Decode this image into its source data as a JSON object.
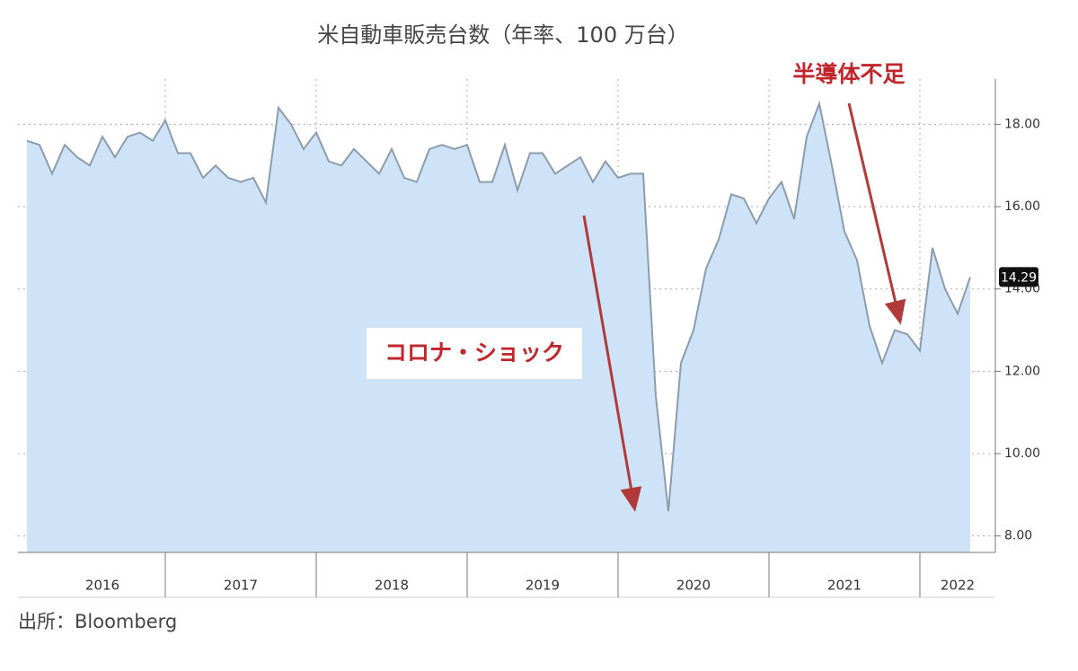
{
  "chart_data": {
    "type": "area",
    "title": "米自動車販売台数（年率、100 万台）",
    "source": "出所：Bloomberg",
    "annotations": [
      "コロナ・ショック",
      "半導体不足"
    ],
    "categories": [
      null,
      null,
      null,
      null,
      null,
      null,
      "2016",
      null,
      null,
      null,
      null,
      null,
      null,
      null,
      null,
      null,
      null,
      "2017",
      null,
      null,
      null,
      null,
      null,
      null,
      null,
      null,
      null,
      null,
      null,
      "2018",
      null,
      null,
      null,
      null,
      null,
      null,
      null,
      null,
      null,
      null,
      null,
      "2019",
      null,
      null,
      null,
      null,
      null,
      null,
      null,
      null,
      null,
      null,
      null,
      "2020",
      null,
      null,
      null,
      null,
      null,
      null,
      null,
      null,
      null,
      null,
      null,
      "2021",
      null,
      null,
      null,
      null,
      null,
      null,
      null,
      null,
      "2022",
      null
    ],
    "values": [
      17.6,
      17.5,
      16.8,
      17.5,
      17.2,
      17.0,
      17.7,
      17.2,
      17.7,
      17.8,
      17.6,
      18.1,
      17.3,
      17.3,
      16.7,
      17.0,
      16.7,
      16.6,
      16.7,
      16.1,
      18.4,
      18.0,
      17.4,
      17.8,
      17.1,
      17.0,
      17.4,
      17.1,
      16.8,
      17.4,
      16.7,
      16.6,
      17.4,
      17.5,
      17.4,
      17.5,
      16.6,
      16.6,
      17.5,
      16.4,
      17.3,
      17.3,
      16.8,
      17.0,
      17.2,
      16.6,
      17.1,
      16.7,
      16.8,
      16.8,
      11.4,
      8.6,
      12.2,
      13.0,
      14.5,
      15.2,
      16.3,
      16.2,
      15.6,
      16.2,
      16.6,
      15.7,
      17.7,
      18.5,
      17.0,
      15.4,
      14.7,
      13.1,
      12.2,
      13.0,
      12.9,
      12.5,
      15.0,
      14.0,
      13.4,
      14.29
    ],
    "value_labels": [
      null,
      null,
      null,
      null,
      null,
      null,
      null,
      null,
      null,
      null,
      null,
      null,
      null,
      null,
      null,
      null,
      null,
      null,
      null,
      null,
      null,
      null,
      null,
      null,
      null,
      null,
      null,
      null,
      null,
      null,
      null,
      null,
      null,
      null,
      null,
      null,
      null,
      null,
      null,
      null,
      null,
      null,
      null,
      null,
      null,
      null,
      null,
      null,
      null,
      null,
      null,
      null,
      null,
      null,
      null,
      null,
      null,
      null,
      null,
      null,
      null,
      null,
      null,
      null,
      null,
      null,
      null,
      null,
      null,
      null,
      null,
      null,
      null,
      null,
      null,
      "14.29"
    ],
    "color": "#8c9cab",
    "fill": "#cfe3f8",
    "ylim": [
      7.6,
      19.1
    ],
    "yticks": [
      {
        "value": 8,
        "label": "8.00"
      },
      {
        "value": 10,
        "label": "10.00"
      },
      {
        "value": 12,
        "label": "12.00"
      },
      {
        "value": 14,
        "label": "14.00"
      },
      {
        "value": 16,
        "label": "16.00"
      },
      {
        "value": 18,
        "label": "18.00"
      }
    ],
    "grid": true
  }
}
